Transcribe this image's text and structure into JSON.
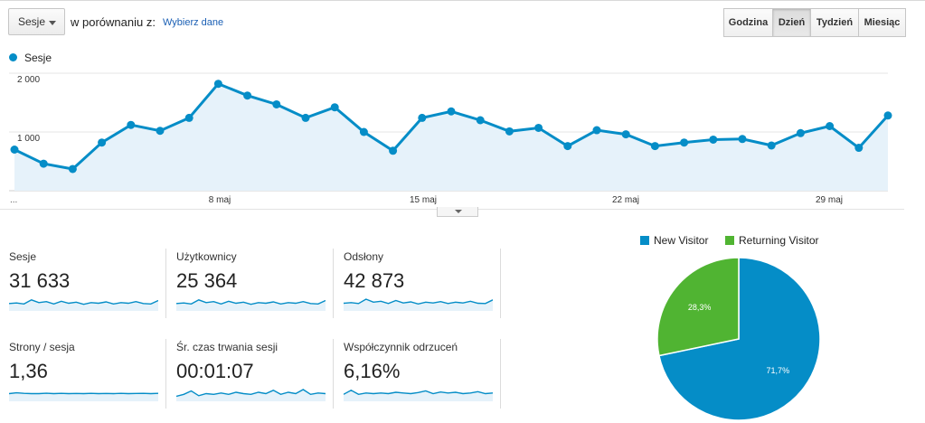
{
  "toolbar": {
    "metric_select": "Sesje",
    "compare_label": "w porównaniu z:",
    "compare_link": "Wybierz dane",
    "granularity": [
      {
        "label": "Godzina",
        "active": false
      },
      {
        "label": "Dzień",
        "active": true
      },
      {
        "label": "Tydzień",
        "active": false
      },
      {
        "label": "Miesiąc",
        "active": false
      }
    ]
  },
  "chart_data": {
    "type": "area",
    "series": [
      {
        "name": "Sesje",
        "values": [
          700,
          460,
          370,
          820,
          1120,
          1020,
          1240,
          1820,
          1620,
          1470,
          1240,
          1420,
          1000,
          680,
          1240,
          1350,
          1200,
          1010,
          1070,
          760,
          1030,
          960,
          760,
          820,
          870,
          880,
          770,
          980,
          1100,
          730,
          1280
        ]
      }
    ],
    "x_ticks": [
      "8 maj",
      "15 maj",
      "22 maj",
      "29 maj"
    ],
    "x_start_label": "...",
    "y_ticks": [
      "1 000",
      "2 000"
    ],
    "ylim": [
      0,
      2000
    ],
    "color": "#058dc7",
    "fill": "#e6f2fa",
    "grid": true
  },
  "metrics": [
    {
      "name": "Sesje",
      "value": "31 633",
      "spark": [
        0.48,
        0.52,
        0.45,
        0.75,
        0.55,
        0.62,
        0.45,
        0.65,
        0.5,
        0.58,
        0.42,
        0.55,
        0.5,
        0.6,
        0.45,
        0.55,
        0.5,
        0.62,
        0.48,
        0.45,
        0.7
      ]
    },
    {
      "name": "Użytkownicy",
      "value": "25 364",
      "spark": [
        0.48,
        0.52,
        0.45,
        0.75,
        0.55,
        0.62,
        0.45,
        0.65,
        0.5,
        0.58,
        0.42,
        0.55,
        0.5,
        0.6,
        0.45,
        0.55,
        0.5,
        0.62,
        0.48,
        0.45,
        0.7
      ]
    },
    {
      "name": "Odsłony",
      "value": "42 873",
      "spark": [
        0.5,
        0.55,
        0.48,
        0.8,
        0.58,
        0.65,
        0.48,
        0.7,
        0.52,
        0.6,
        0.45,
        0.58,
        0.52,
        0.62,
        0.48,
        0.58,
        0.52,
        0.65,
        0.5,
        0.48,
        0.75
      ]
    },
    {
      "name": "Strony / sesja",
      "value": "1,36",
      "spark": [
        0.5,
        0.56,
        0.52,
        0.5,
        0.5,
        0.53,
        0.5,
        0.52,
        0.5,
        0.51,
        0.5,
        0.52,
        0.5,
        0.51,
        0.5,
        0.52,
        0.5,
        0.51,
        0.52,
        0.5,
        0.52
      ]
    },
    {
      "name": "Śr. czas trwania sesji",
      "value": "00:01:07",
      "spark": [
        0.3,
        0.45,
        0.7,
        0.35,
        0.5,
        0.45,
        0.55,
        0.45,
        0.6,
        0.5,
        0.45,
        0.6,
        0.5,
        0.75,
        0.45,
        0.6,
        0.5,
        0.8,
        0.45,
        0.55,
        0.5
      ]
    },
    {
      "name": "Współczynnik odrzuceń",
      "value": "6,16%",
      "spark": [
        0.45,
        0.75,
        0.45,
        0.55,
        0.5,
        0.55,
        0.5,
        0.6,
        0.55,
        0.5,
        0.58,
        0.7,
        0.5,
        0.62,
        0.55,
        0.6,
        0.5,
        0.55,
        0.65,
        0.5,
        0.55
      ]
    }
  ],
  "pie": {
    "slices": [
      {
        "name": "New Visitor",
        "value": 71.7,
        "label": "71,7%",
        "color": "#058dc7"
      },
      {
        "name": "Returning Visitor",
        "value": 28.3,
        "label": "28,3%",
        "color": "#50b432"
      }
    ]
  }
}
